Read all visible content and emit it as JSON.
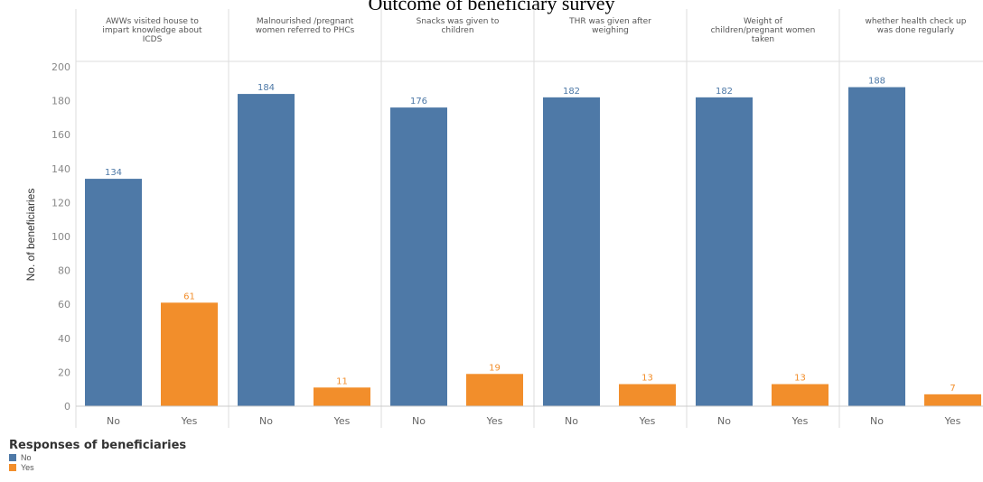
{
  "chart_data": {
    "type": "bar",
    "title": "Outcome of beneficiary survey",
    "ylabel": "No. of beneficiaries",
    "ylim": [
      0,
      200
    ],
    "yticks": [
      0,
      20,
      40,
      60,
      80,
      100,
      120,
      140,
      160,
      180,
      200
    ],
    "categories": [
      "No",
      "Yes"
    ],
    "panels": [
      {
        "header": "AWWs visited house to impart knowledge about ICDS",
        "values": [
          134,
          61
        ]
      },
      {
        "header": "Malnourished /pregnant women referred to PHCs",
        "values": [
          184,
          11
        ]
      },
      {
        "header": "Snacks was given to children",
        "values": [
          176,
          19
        ]
      },
      {
        "header": "THR was given after weighing",
        "values": [
          182,
          13
        ]
      },
      {
        "header": "Weight of children/pregnant women taken",
        "values": [
          182,
          13
        ]
      },
      {
        "header": "whether health check up was done regularly",
        "values": [
          188,
          7
        ]
      }
    ],
    "colors": {
      "No": "#4e79a7",
      "Yes": "#f28e2b"
    },
    "legend": {
      "title": "Responses of beneficiaries",
      "position": "bottom-left",
      "items": [
        {
          "label": "No",
          "color": "#4e79a7"
        },
        {
          "label": "Yes",
          "color": "#f28e2b"
        }
      ]
    },
    "grid": false
  }
}
